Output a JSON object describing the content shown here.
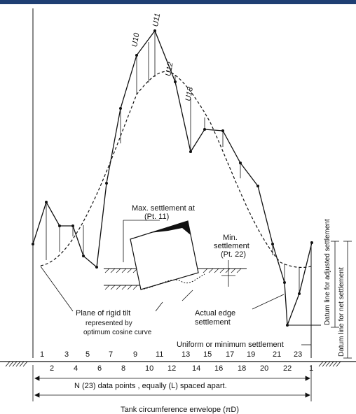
{
  "labels": {
    "max_settlement": "Max. settlement at",
    "max_settlement_pt": "(Pt. 11)",
    "min_settlement": "Min.",
    "min_settlement_2": "settlement",
    "min_settlement_pt": "(Pt. 22)",
    "plane_rigid_tilt_1": "Plane of rigid tilt",
    "plane_rigid_tilt_2": "represented by",
    "plane_rigid_tilt_3": "optimum cosine curve",
    "actual_edge_1": "Actual edge",
    "actual_edge_2": "settlement",
    "uniform_min": "Uniform or minimum settlement",
    "datum_adjusted": "Datum line for adjusted settlement",
    "datum_net": "Datum line for net settlement",
    "n_points": "N (23) data points , equally (L) spaced apart.",
    "tank_circ": "Tank circumference envelope (πD)"
  },
  "u_labels": [
    "U10",
    "U11",
    "U12",
    "U13"
  ],
  "points_top": [
    "1",
    "3",
    "5",
    "7",
    "9",
    "11",
    "13",
    "15",
    "17",
    "19",
    "21",
    "23"
  ],
  "points_bottom": [
    "2",
    "4",
    "6",
    "8",
    "10",
    "12",
    "14",
    "16",
    "18",
    "20",
    "22",
    "1"
  ],
  "colors": {
    "header": "#1f3f73",
    "ink": "#111111"
  }
}
